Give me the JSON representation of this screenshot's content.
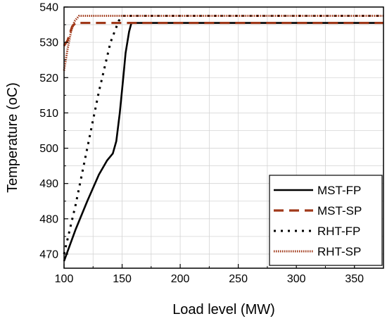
{
  "chart_data": {
    "type": "line",
    "xlabel": "Load level (MW)",
    "ylabel": "Temperature (oC)",
    "xlim": [
      100,
      375
    ],
    "ylim": [
      466,
      540
    ],
    "x_ticks": [
      100,
      150,
      200,
      250,
      300,
      350
    ],
    "y_ticks": [
      470,
      480,
      490,
      500,
      510,
      520,
      530,
      540
    ],
    "grid": true,
    "legend_position": "bottom-right",
    "series": [
      {
        "name": "MST-FP",
        "color": "#000000",
        "style": "solid",
        "points": [
          [
            100,
            468
          ],
          [
            110,
            477
          ],
          [
            120,
            485
          ],
          [
            130,
            492.5
          ],
          [
            137,
            496.5
          ],
          [
            142,
            498.5
          ],
          [
            145,
            502
          ],
          [
            148,
            510
          ],
          [
            151,
            520
          ],
          [
            153,
            527
          ],
          [
            156,
            533
          ],
          [
            158,
            535.5
          ],
          [
            375,
            535.5
          ]
        ]
      },
      {
        "name": "MST-SP",
        "color": "#a0391a",
        "style": "dashed",
        "points": [
          [
            100,
            529
          ],
          [
            103,
            530.5
          ],
          [
            105,
            532.5
          ],
          [
            107,
            534.5
          ],
          [
            110,
            535.5
          ],
          [
            375,
            535.5
          ]
        ]
      },
      {
        "name": "RHT-FP",
        "color": "#000000",
        "style": "dotted",
        "points": [
          [
            100,
            470
          ],
          [
            110,
            484
          ],
          [
            120,
            500
          ],
          [
            130,
            516
          ],
          [
            140,
            530
          ],
          [
            147,
            536
          ],
          [
            150,
            537.5
          ],
          [
            375,
            537.5
          ]
        ]
      },
      {
        "name": "RHT-SP",
        "color": "#a0391a",
        "style": "dotted",
        "points": [
          [
            100,
            522
          ],
          [
            103,
            528
          ],
          [
            106,
            533
          ],
          [
            109,
            536
          ],
          [
            113,
            537.5
          ],
          [
            375,
            537.5
          ]
        ]
      }
    ]
  }
}
